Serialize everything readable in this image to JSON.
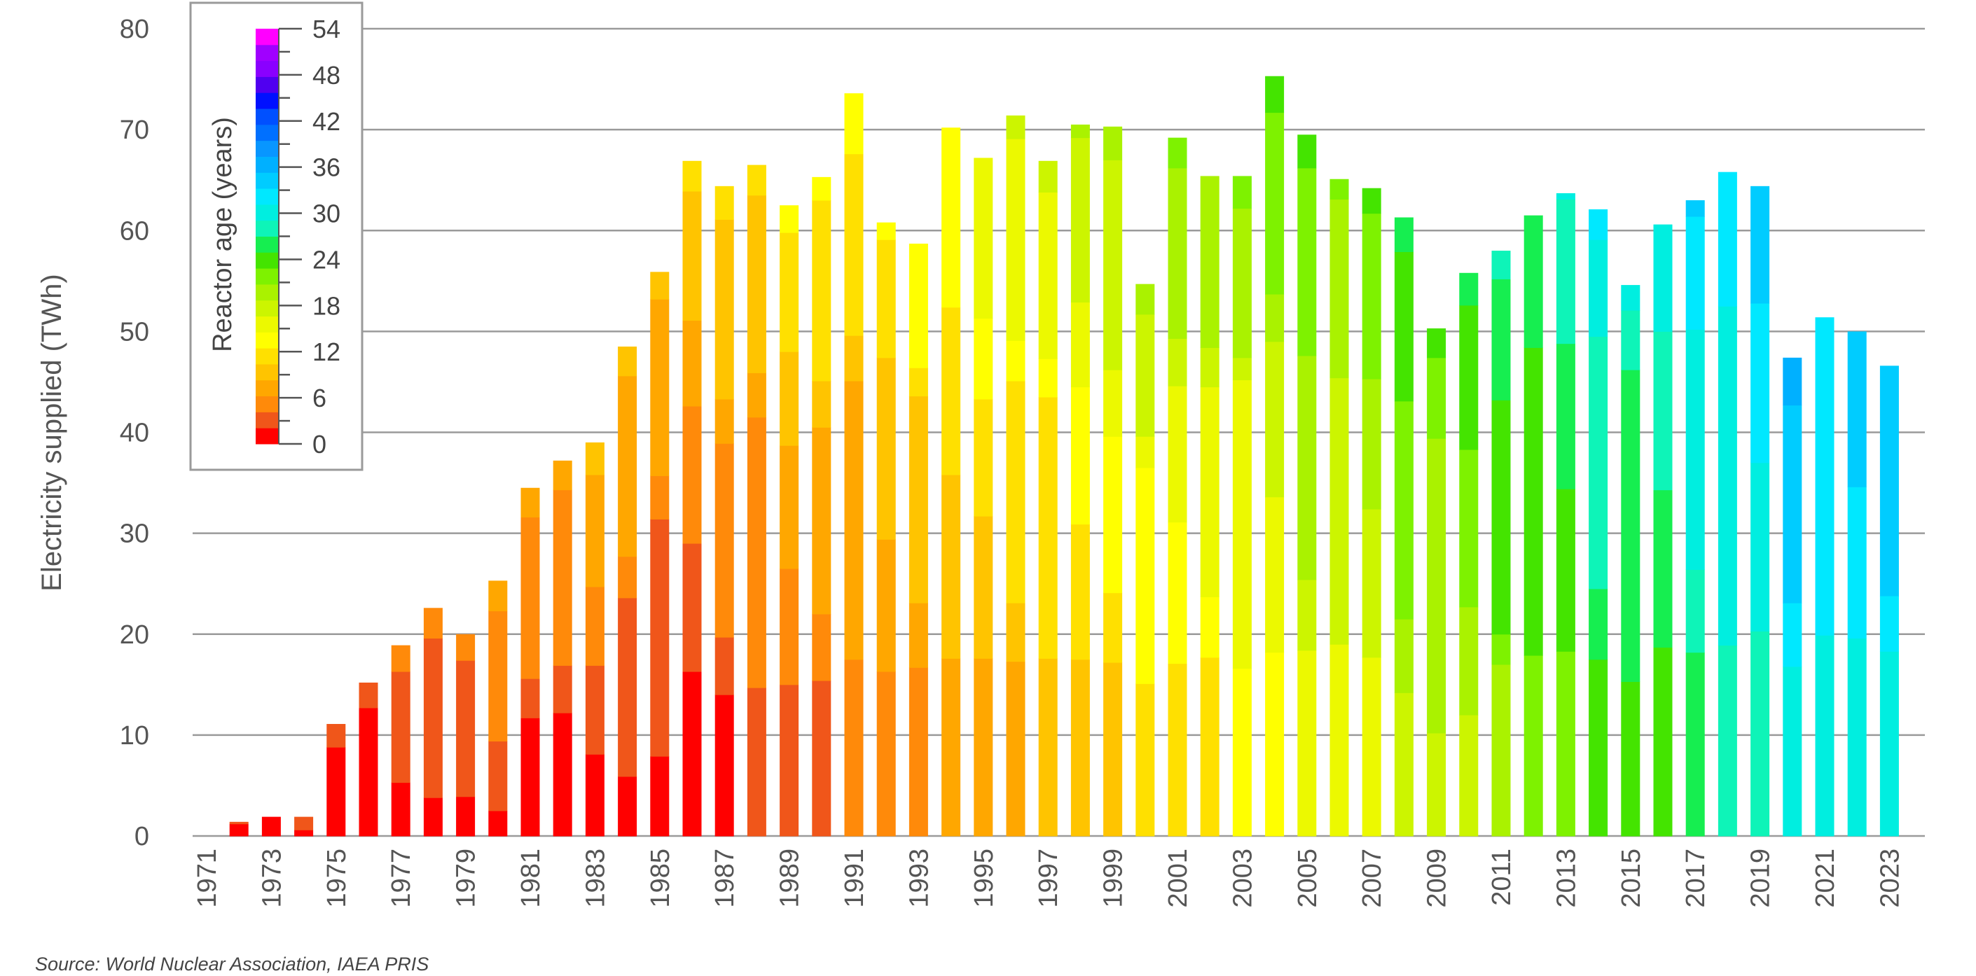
{
  "chart_data": {
    "type": "bar",
    "stacked": true,
    "ylabel": "Electricity supplied (TWh)",
    "ylim": [
      0,
      80
    ],
    "yticks": [
      0,
      10,
      20,
      30,
      40,
      50,
      60,
      70,
      80
    ],
    "grid": true,
    "source": "Source: World Nuclear Association, IAEA PRIS",
    "legend": {
      "title": "Reactor age (years)",
      "placement": "top-left",
      "tick_labels": [
        "0",
        "6",
        "12",
        "18",
        "24",
        "30",
        "36",
        "42",
        "48",
        "54"
      ],
      "colors": [
        "#ff0000",
        "#f0561a",
        "#ff8a0a",
        "#ffa700",
        "#ffc400",
        "#ffe000",
        "#ffff00",
        "#ecf900",
        "#ccf500",
        "#aaf200",
        "#7ef200",
        "#44e400",
        "#16ee50",
        "#0ef4b8",
        "#00eee0",
        "#00e8ff",
        "#00ccff",
        "#00b0ff",
        "#0896ff",
        "#0070ff",
        "#0050ff",
        "#0010ff",
        "#5000f0",
        "#8a00ff",
        "#a000ff",
        "#ff00ff"
      ]
    },
    "categories": [
      "1971",
      "1972",
      "1973",
      "1974",
      "1975",
      "1976",
      "1977",
      "1978",
      "1979",
      "1980",
      "1981",
      "1982",
      "1983",
      "1984",
      "1985",
      "1986",
      "1987",
      "1988",
      "1989",
      "1990",
      "1991",
      "1992",
      "1993",
      "1994",
      "1995",
      "1996",
      "1997",
      "1998",
      "1999",
      "2000",
      "2001",
      "2002",
      "2003",
      "2004",
      "2005",
      "2006",
      "2007",
      "2008",
      "2009",
      "2010",
      "2011",
      "2012",
      "2013",
      "2014",
      "2015",
      "2016",
      "2017",
      "2018",
      "2019",
      "2020",
      "2021",
      "2022",
      "2023"
    ],
    "tick_labels": [
      "1971",
      "1973",
      "1975",
      "1977",
      "1979",
      "1981",
      "1983",
      "1985",
      "1987",
      "1989",
      "1991",
      "1993",
      "1995",
      "1997",
      "1999",
      "2001",
      "2003",
      "2005",
      "2007",
      "2009",
      "2011",
      "2013",
      "2015",
      "2017",
      "2019",
      "2021",
      "2023"
    ],
    "segments": [
      [],
      [
        [
          0,
          1.2
        ],
        [
          1,
          0.2
        ]
      ],
      [
        [
          0,
          1.9
        ]
      ],
      [
        [
          0,
          0.6
        ],
        [
          1,
          1.3
        ]
      ],
      [
        [
          0,
          8.8
        ],
        [
          1,
          2.3
        ]
      ],
      [
        [
          0,
          12.7
        ],
        [
          1,
          2.5
        ]
      ],
      [
        [
          0,
          5.3
        ],
        [
          1,
          11.0
        ],
        [
          2,
          2.6
        ]
      ],
      [
        [
          0,
          3.8
        ],
        [
          1,
          15.8
        ],
        [
          2,
          3.0
        ]
      ],
      [
        [
          0,
          3.9
        ],
        [
          1,
          13.5
        ],
        [
          2,
          2.6
        ]
      ],
      [
        [
          0,
          2.5
        ],
        [
          1,
          6.9
        ],
        [
          2,
          12.9
        ],
        [
          3,
          3.0
        ]
      ],
      [
        [
          0,
          11.7
        ],
        [
          1,
          3.9
        ],
        [
          2,
          16.0
        ],
        [
          3,
          2.9
        ]
      ],
      [
        [
          0,
          12.2
        ],
        [
          1,
          4.7
        ],
        [
          2,
          17.4
        ],
        [
          3,
          2.9
        ]
      ],
      [
        [
          0,
          8.1
        ],
        [
          1,
          8.8
        ],
        [
          2,
          7.8
        ],
        [
          3,
          11.1
        ],
        [
          4,
          3.2
        ]
      ],
      [
        [
          0,
          5.9
        ],
        [
          1,
          17.7
        ],
        [
          2,
          4.1
        ],
        [
          3,
          17.9
        ],
        [
          4,
          2.9
        ]
      ],
      [
        [
          0,
          7.9
        ],
        [
          1,
          23.5
        ],
        [
          2,
          4.3
        ],
        [
          3,
          17.5
        ],
        [
          4,
          2.7
        ]
      ],
      [
        [
          0,
          16.3
        ],
        [
          1,
          12.7
        ],
        [
          2,
          13.6
        ],
        [
          3,
          8.5
        ],
        [
          4,
          12.8
        ],
        [
          5,
          3.0
        ]
      ],
      [
        [
          0,
          14.0
        ],
        [
          1,
          5.7
        ],
        [
          2,
          19.2
        ],
        [
          3,
          4.4
        ],
        [
          4,
          17.8
        ],
        [
          5,
          3.3
        ]
      ],
      [
        [
          1,
          14.7
        ],
        [
          2,
          26.8
        ],
        [
          3,
          4.4
        ],
        [
          4,
          17.6
        ],
        [
          5,
          3.0
        ]
      ],
      [
        [
          1,
          15.0
        ],
        [
          2,
          11.5
        ],
        [
          3,
          12.2
        ],
        [
          4,
          9.3
        ],
        [
          5,
          11.8
        ],
        [
          6,
          2.7
        ]
      ],
      [
        [
          1,
          15.4
        ],
        [
          2,
          6.6
        ],
        [
          3,
          18.5
        ],
        [
          4,
          4.6
        ],
        [
          5,
          17.9
        ],
        [
          6,
          2.3
        ]
      ],
      [
        [
          2,
          17.5
        ],
        [
          3,
          27.6
        ],
        [
          4,
          4.5
        ],
        [
          5,
          18.0
        ],
        [
          6,
          6.0
        ]
      ],
      [
        [
          2,
          16.3
        ],
        [
          3,
          13.1
        ],
        [
          4,
          18.0
        ],
        [
          5,
          11.7
        ],
        [
          6,
          1.7
        ]
      ],
      [
        [
          2,
          16.7
        ],
        [
          3,
          6.4
        ],
        [
          4,
          20.5
        ],
        [
          5,
          2.8
        ],
        [
          6,
          12.3
        ]
      ],
      [
        [
          3,
          17.6
        ],
        [
          4,
          18.2
        ],
        [
          5,
          16.6
        ],
        [
          6,
          17.8
        ]
      ],
      [
        [
          3,
          17.6
        ],
        [
          4,
          14.1
        ],
        [
          5,
          11.6
        ],
        [
          6,
          8.0
        ],
        [
          7,
          15.9
        ]
      ],
      [
        [
          3,
          17.3
        ],
        [
          4,
          5.8
        ],
        [
          5,
          22.0
        ],
        [
          6,
          4.0
        ],
        [
          7,
          20.0
        ],
        [
          8,
          2.3
        ]
      ],
      [
        [
          4,
          17.6
        ],
        [
          5,
          25.9
        ],
        [
          6,
          3.8
        ],
        [
          7,
          16.5
        ],
        [
          8,
          3.1
        ]
      ],
      [
        [
          4,
          17.5
        ],
        [
          5,
          13.4
        ],
        [
          6,
          13.6
        ],
        [
          7,
          8.4
        ],
        [
          8,
          16.3
        ],
        [
          9,
          1.3
        ]
      ],
      [
        [
          4,
          17.2
        ],
        [
          5,
          6.9
        ],
        [
          6,
          15.5
        ],
        [
          7,
          6.6
        ],
        [
          8,
          20.8
        ],
        [
          9,
          3.3
        ]
      ],
      [
        [
          5,
          15.1
        ],
        [
          6,
          21.4
        ],
        [
          7,
          3.1
        ],
        [
          8,
          12.1
        ],
        [
          9,
          3.0
        ]
      ],
      [
        [
          5,
          17.1
        ],
        [
          6,
          14.0
        ],
        [
          7,
          13.5
        ],
        [
          8,
          4.7
        ],
        [
          9,
          16.9
        ],
        [
          10,
          3.0
        ]
      ],
      [
        [
          5,
          17.7
        ],
        [
          6,
          6.0
        ],
        [
          7,
          20.8
        ],
        [
          8,
          3.9
        ],
        [
          9,
          17.0
        ]
      ],
      [
        [
          6,
          16.6
        ],
        [
          7,
          28.6
        ],
        [
          8,
          2.2
        ],
        [
          9,
          14.8
        ],
        [
          10,
          3.2
        ]
      ],
      [
        [
          6,
          18.2
        ],
        [
          7,
          15.4
        ],
        [
          8,
          15.4
        ],
        [
          9,
          4.7
        ],
        [
          10,
          18.0
        ],
        [
          11,
          3.6
        ]
      ],
      [
        [
          7,
          18.4
        ],
        [
          8,
          7.0
        ],
        [
          9,
          22.2
        ],
        [
          10,
          18.6
        ],
        [
          11,
          3.3
        ]
      ],
      [
        [
          7,
          19.0
        ],
        [
          8,
          26.4
        ],
        [
          9,
          17.7
        ],
        [
          10,
          2.0
        ]
      ],
      [
        [
          7,
          17.7
        ],
        [
          8,
          14.7
        ],
        [
          9,
          12.9
        ],
        [
          10,
          16.4
        ],
        [
          11,
          2.5
        ]
      ],
      [
        [
          8,
          14.2
        ],
        [
          9,
          7.3
        ],
        [
          10,
          21.6
        ],
        [
          11,
          14.8
        ],
        [
          12,
          3.4
        ]
      ],
      [
        [
          8,
          10.2
        ],
        [
          9,
          29.2
        ],
        [
          10,
          8.0
        ],
        [
          11,
          2.9
        ]
      ],
      [
        [
          8,
          12.0
        ],
        [
          9,
          10.7
        ],
        [
          10,
          15.6
        ],
        [
          11,
          14.3
        ],
        [
          12,
          3.2
        ]
      ],
      [
        [
          9,
          17.0
        ],
        [
          10,
          3.0
        ],
        [
          11,
          23.2
        ],
        [
          12,
          12.0
        ],
        [
          13,
          2.8
        ]
      ],
      [
        [
          10,
          17.9
        ],
        [
          11,
          30.5
        ],
        [
          12,
          13.1
        ]
      ],
      [
        [
          10,
          18.3
        ],
        [
          11,
          16.1
        ],
        [
          12,
          14.4
        ],
        [
          13,
          14.3
        ],
        [
          14,
          0.6
        ]
      ],
      [
        [
          11,
          17.5
        ],
        [
          12,
          7.0
        ],
        [
          13,
          25.0
        ],
        [
          14,
          9.6
        ],
        [
          15,
          3.0
        ]
      ],
      [
        [
          11,
          15.3
        ],
        [
          12,
          30.9
        ],
        [
          13,
          5.9
        ],
        [
          14,
          2.5
        ]
      ],
      [
        [
          11,
          18.7
        ],
        [
          12,
          15.6
        ],
        [
          13,
          15.7
        ],
        [
          14,
          10.6
        ]
      ],
      [
        [
          12,
          18.2
        ],
        [
          13,
          8.2
        ],
        [
          14,
          23.8
        ],
        [
          15,
          11.2
        ],
        [
          16,
          1.6
        ]
      ],
      [
        [
          13,
          18.9
        ],
        [
          14,
          33.6
        ],
        [
          15,
          13.3
        ]
      ],
      [
        [
          13,
          20.3
        ],
        [
          14,
          16.7
        ],
        [
          15,
          15.8
        ],
        [
          16,
          11.6
        ]
      ],
      [
        [
          14,
          16.8
        ],
        [
          15,
          6.3
        ],
        [
          16,
          19.6
        ],
        [
          17,
          4.7
        ]
      ],
      [
        [
          14,
          19.9
        ],
        [
          15,
          31.5
        ]
      ],
      [
        [
          14,
          19.6
        ],
        [
          15,
          15.0
        ],
        [
          16,
          15.4
        ]
      ],
      [
        [
          14,
          18.3
        ],
        [
          15,
          5.5
        ],
        [
          16,
          22.8
        ]
      ]
    ]
  }
}
